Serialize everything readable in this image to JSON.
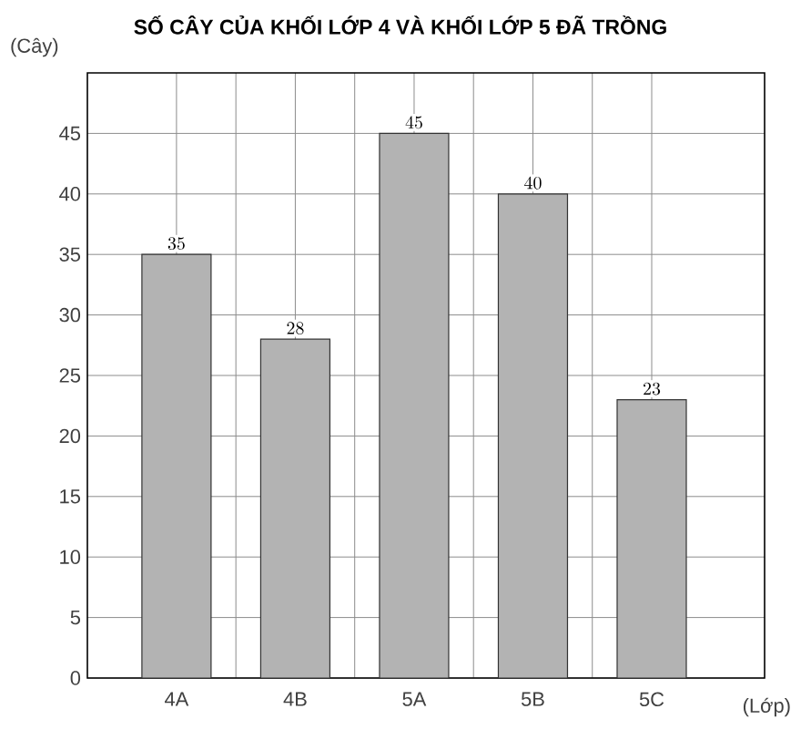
{
  "chart_data": {
    "type": "bar",
    "title": "SỐ CÂY CỦA KHỐI LỚP 4 VÀ KHỐI LỚP 5 ĐÃ TRỒNG",
    "xlabel": "(Lớp)",
    "ylabel": "(Cây)",
    "categories": [
      "4A",
      "4B",
      "5A",
      "5B",
      "5C"
    ],
    "values": [
      35,
      28,
      45,
      40,
      23
    ],
    "color": "#b3b3b3",
    "ylim": [
      0,
      50
    ],
    "yticks": [
      0,
      5,
      10,
      15,
      20,
      25,
      30,
      35,
      40,
      45
    ],
    "grid": true,
    "data_labels": true
  }
}
